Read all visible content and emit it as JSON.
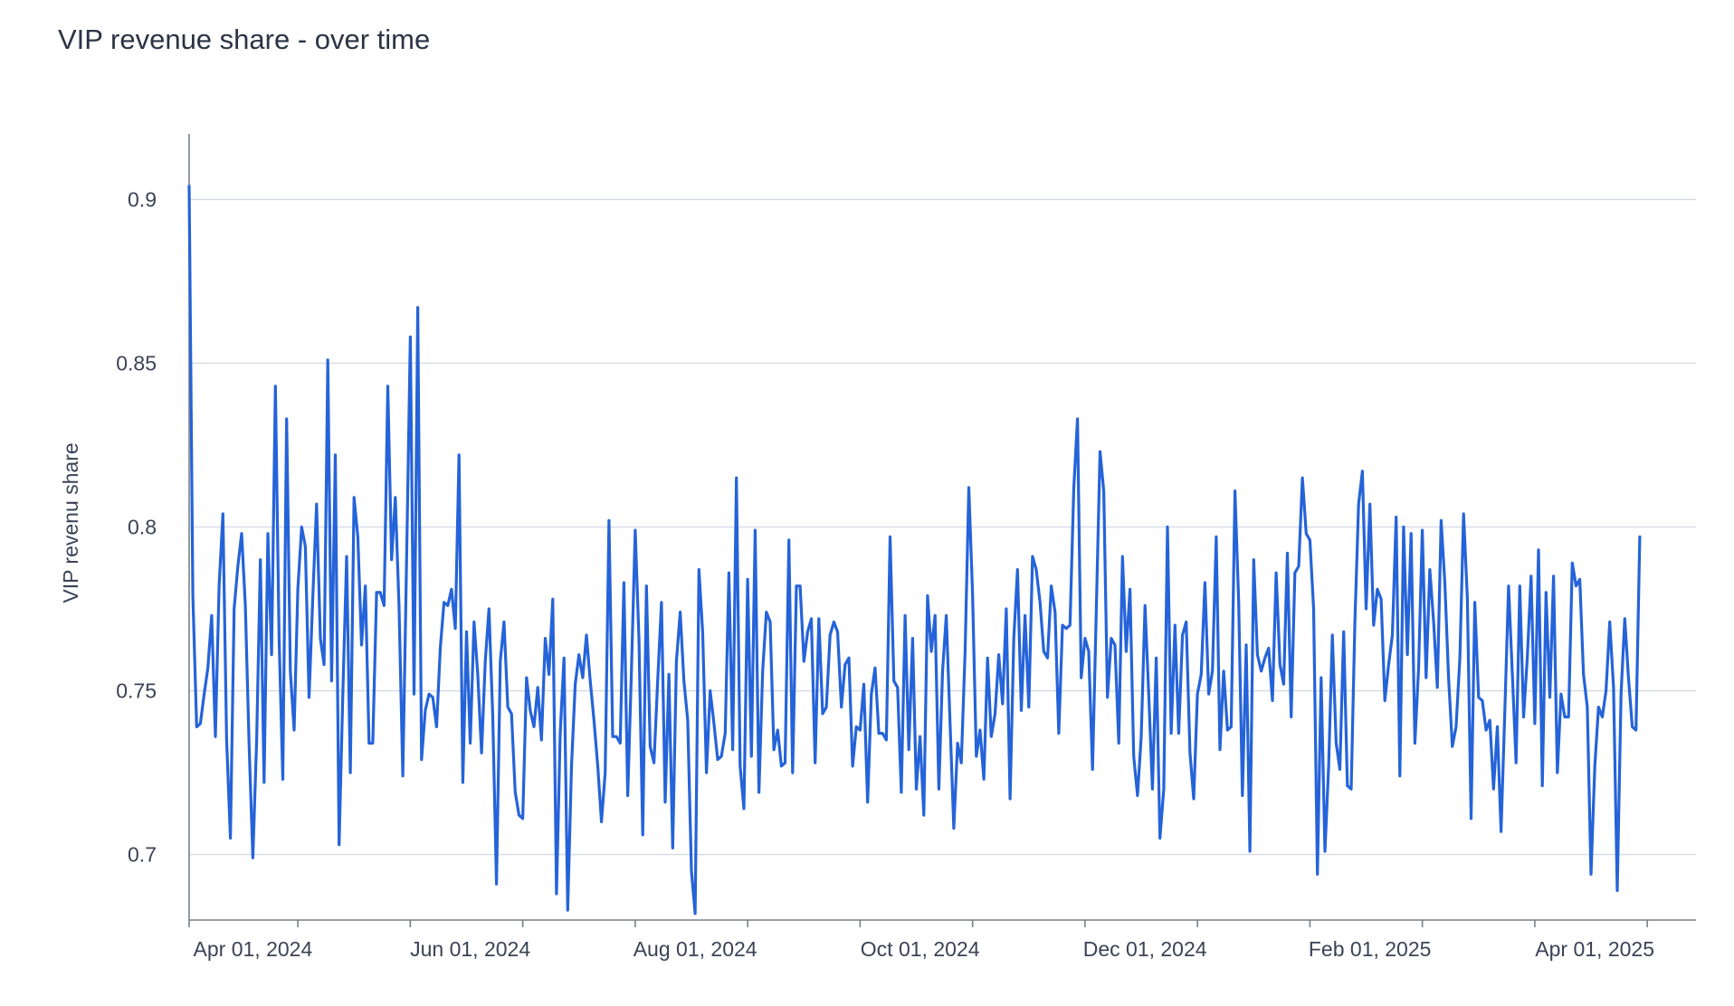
{
  "chart_data": {
    "type": "line",
    "title": "VIP revenue share - over time",
    "xlabel": "",
    "ylabel": "VIP revenu share",
    "ylim": [
      0.68,
      0.92
    ],
    "yticks": [
      0.7,
      0.75,
      0.8,
      0.85,
      0.9
    ],
    "ytick_labels": [
      "0.7",
      "0.75",
      "0.8",
      "0.85",
      "0.9"
    ],
    "xlim": [
      "2024-03-19",
      "2025-04-25"
    ],
    "xticks": [
      "2024-03-19",
      "2024-04-17",
      "2024-05-17",
      "2024-06-16",
      "2024-07-16",
      "2024-08-15",
      "2024-09-14",
      "2024-10-14",
      "2024-11-13",
      "2024-12-13",
      "2025-01-12",
      "2025-02-11",
      "2025-03-13",
      "2025-04-12"
    ],
    "xtick_labels": [
      {
        "date": "2024-04-05",
        "label": "Apr 01, 2024"
      },
      {
        "date": "2024-06-02",
        "label": "Jun 01, 2024"
      },
      {
        "date": "2024-08-01",
        "label": "Aug 01, 2024"
      },
      {
        "date": "2024-09-30",
        "label": "Oct 01, 2024"
      },
      {
        "date": "2024-11-29",
        "label": "Dec 01, 2024"
      },
      {
        "date": "2025-01-28",
        "label": "Feb 01, 2025"
      },
      {
        "date": "2025-03-29",
        "label": "Apr 01, 2025"
      }
    ],
    "grid": true,
    "line_color": "#2563d9",
    "series": [
      {
        "x_start": "2024-03-19",
        "x_step_days": 1,
        "values": [
          0.904,
          0.779,
          0.739,
          0.74,
          0.749,
          0.757,
          0.773,
          0.736,
          0.782,
          0.804,
          0.735,
          0.705,
          0.775,
          0.788,
          0.798,
          0.776,
          0.733,
          0.699,
          0.735,
          0.79,
          0.722,
          0.798,
          0.761,
          0.843,
          0.766,
          0.723,
          0.833,
          0.756,
          0.738,
          0.781,
          0.8,
          0.794,
          0.748,
          0.779,
          0.807,
          0.766,
          0.758,
          0.851,
          0.753,
          0.822,
          0.703,
          0.749,
          0.791,
          0.725,
          0.809,
          0.797,
          0.764,
          0.782,
          0.734,
          0.734,
          0.78,
          0.78,
          0.776,
          0.843,
          0.79,
          0.809,
          0.776,
          0.724,
          0.789,
          0.858,
          0.749,
          0.867,
          0.729,
          0.744,
          0.749,
          0.748,
          0.739,
          0.763,
          0.777,
          0.776,
          0.781,
          0.769,
          0.822,
          0.722,
          0.768,
          0.734,
          0.771,
          0.755,
          0.731,
          0.759,
          0.775,
          0.742,
          0.691,
          0.759,
          0.771,
          0.745,
          0.743,
          0.719,
          0.712,
          0.711,
          0.754,
          0.744,
          0.739,
          0.751,
          0.735,
          0.766,
          0.755,
          0.778,
          0.688,
          0.737,
          0.76,
          0.683,
          0.727,
          0.752,
          0.761,
          0.754,
          0.767,
          0.753,
          0.741,
          0.727,
          0.71,
          0.725,
          0.802,
          0.736,
          0.736,
          0.734,
          0.783,
          0.718,
          0.756,
          0.799,
          0.766,
          0.706,
          0.782,
          0.733,
          0.728,
          0.753,
          0.777,
          0.716,
          0.755,
          0.702,
          0.759,
          0.774,
          0.753,
          0.741,
          0.695,
          0.682,
          0.787,
          0.768,
          0.725,
          0.75,
          0.74,
          0.729,
          0.73,
          0.737,
          0.786,
          0.732,
          0.815,
          0.727,
          0.714,
          0.784,
          0.73,
          0.799,
          0.719,
          0.756,
          0.774,
          0.771,
          0.732,
          0.738,
          0.727,
          0.728,
          0.796,
          0.725,
          0.782,
          0.782,
          0.759,
          0.768,
          0.772,
          0.728,
          0.772,
          0.743,
          0.745,
          0.767,
          0.771,
          0.768,
          0.745,
          0.758,
          0.76,
          0.727,
          0.739,
          0.738,
          0.752,
          0.716,
          0.749,
          0.757,
          0.737,
          0.737,
          0.735,
          0.797,
          0.753,
          0.751,
          0.719,
          0.773,
          0.732,
          0.766,
          0.72,
          0.736,
          0.712,
          0.779,
          0.762,
          0.773,
          0.72,
          0.756,
          0.773,
          0.74,
          0.708,
          0.734,
          0.728,
          0.762,
          0.812,
          0.78,
          0.73,
          0.738,
          0.723,
          0.76,
          0.736,
          0.743,
          0.761,
          0.746,
          0.775,
          0.717,
          0.766,
          0.787,
          0.744,
          0.773,
          0.745,
          0.791,
          0.787,
          0.777,
          0.762,
          0.76,
          0.782,
          0.774,
          0.737,
          0.77,
          0.769,
          0.77,
          0.812,
          0.833,
          0.754,
          0.766,
          0.762,
          0.726,
          0.774,
          0.823,
          0.811,
          0.748,
          0.766,
          0.764,
          0.734,
          0.791,
          0.762,
          0.781,
          0.73,
          0.718,
          0.736,
          0.776,
          0.749,
          0.72,
          0.76,
          0.705,
          0.72,
          0.8,
          0.737,
          0.77,
          0.737,
          0.767,
          0.771,
          0.731,
          0.717,
          0.749,
          0.755,
          0.783,
          0.749,
          0.756,
          0.797,
          0.732,
          0.756,
          0.738,
          0.739,
          0.811,
          0.777,
          0.718,
          0.764,
          0.701,
          0.79,
          0.761,
          0.756,
          0.76,
          0.763,
          0.747,
          0.786,
          0.758,
          0.752,
          0.792,
          0.742,
          0.786,
          0.788,
          0.815,
          0.798,
          0.796,
          0.775,
          0.694,
          0.754,
          0.701,
          0.727,
          0.767,
          0.734,
          0.726,
          0.768,
          0.721,
          0.72,
          0.771,
          0.807,
          0.817,
          0.775,
          0.807,
          0.77,
          0.781,
          0.778,
          0.747,
          0.758,
          0.767,
          0.803,
          0.724,
          0.8,
          0.761,
          0.798,
          0.734,
          0.757,
          0.799,
          0.754,
          0.787,
          0.771,
          0.751,
          0.802,
          0.783,
          0.754,
          0.733,
          0.739,
          0.76,
          0.804,
          0.778,
          0.711,
          0.777,
          0.748,
          0.747,
          0.738,
          0.741,
          0.72,
          0.739,
          0.707,
          0.744,
          0.782,
          0.755,
          0.728,
          0.782,
          0.742,
          0.76,
          0.785,
          0.74,
          0.793,
          0.721,
          0.78,
          0.748,
          0.785,
          0.725,
          0.749,
          0.742,
          0.742,
          0.789,
          0.782,
          0.784,
          0.755,
          0.745,
          0.694,
          0.727,
          0.745,
          0.742,
          0.75,
          0.771,
          0.751,
          0.689,
          0.749,
          0.772,
          0.754,
          0.739,
          0.738,
          0.797
        ]
      }
    ]
  }
}
